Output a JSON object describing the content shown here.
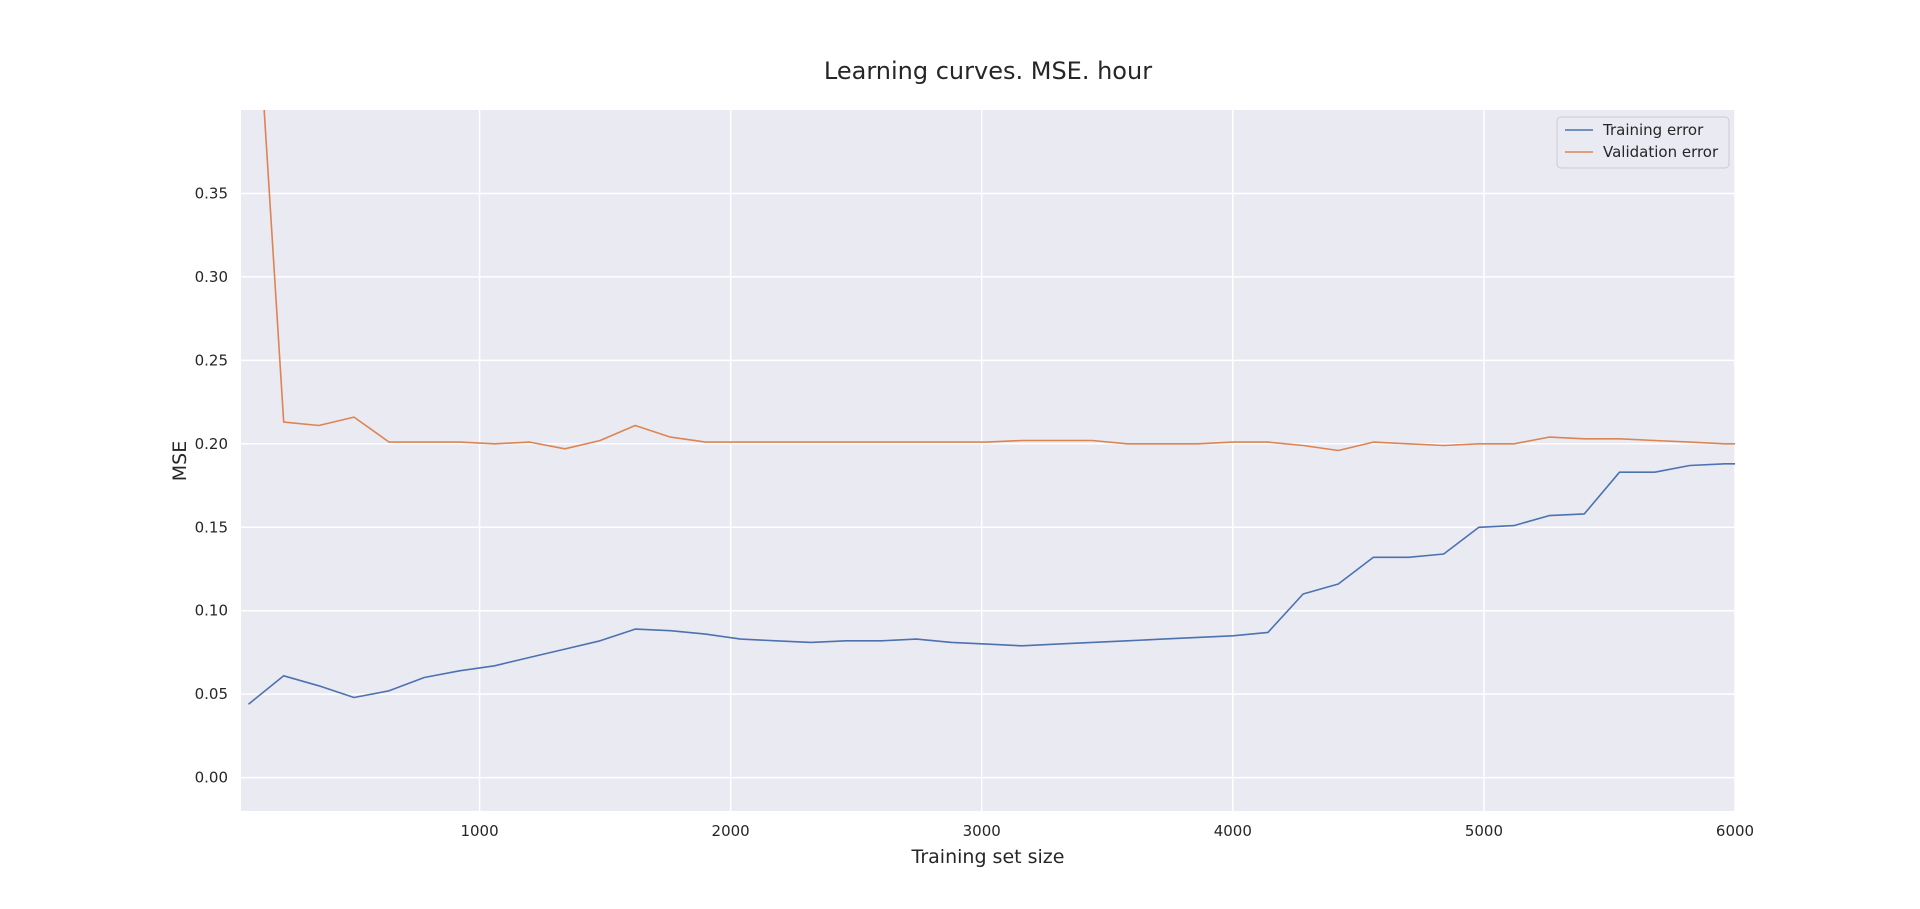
{
  "chart_data": {
    "type": "line",
    "title": "Learning curves. MSE. hour",
    "xlabel": "Training set size",
    "ylabel": "MSE",
    "xlim": [
      50,
      6000
    ],
    "ylim": [
      -0.02,
      0.4
    ],
    "xticks": [
      1000,
      2000,
      3000,
      4000,
      5000,
      6000
    ],
    "xtick_labels": [
      "1000",
      "2000",
      "3000",
      "4000",
      "5000",
      "6000"
    ],
    "yticks": [
      0.0,
      0.05,
      0.1,
      0.15,
      0.2,
      0.25,
      0.3,
      0.35
    ],
    "ytick_labels": [
      "0.00",
      "0.05",
      "0.10",
      "0.15",
      "0.20",
      "0.25",
      "0.30",
      "0.35"
    ],
    "grid": true,
    "legend_position": "top-right",
    "background_color": "#eaeaf2",
    "x": [
      80,
      220,
      360,
      500,
      640,
      780,
      920,
      1060,
      1200,
      1340,
      1480,
      1620,
      1760,
      1900,
      2040,
      2180,
      2320,
      2460,
      2600,
      2740,
      2880,
      3020,
      3160,
      3300,
      3440,
      3580,
      3720,
      3860,
      4000,
      4140,
      4280,
      4420,
      4560,
      4700,
      4840,
      4980,
      5120,
      5260,
      5400,
      5540,
      5680,
      5820,
      5960,
      6000
    ],
    "series": [
      {
        "name": "Training error",
        "color": "#4c72b0",
        "values": [
          0.044,
          0.061,
          0.055,
          0.048,
          0.052,
          0.06,
          0.064,
          0.067,
          0.072,
          0.077,
          0.082,
          0.089,
          0.088,
          0.086,
          0.083,
          0.082,
          0.081,
          0.082,
          0.082,
          0.083,
          0.081,
          0.08,
          0.079,
          0.08,
          0.081,
          0.082,
          0.083,
          0.084,
          0.085,
          0.087,
          0.11,
          0.116,
          0.132,
          0.132,
          0.134,
          0.15,
          0.151,
          0.157,
          0.158,
          0.183,
          0.183,
          0.187,
          0.188,
          0.188
        ]
      },
      {
        "name": "Validation error",
        "color": "#dd8452",
        "values": [
          0.55,
          0.213,
          0.211,
          0.216,
          0.201,
          0.201,
          0.201,
          0.2,
          0.201,
          0.197,
          0.202,
          0.211,
          0.204,
          0.201,
          0.201,
          0.201,
          0.201,
          0.201,
          0.201,
          0.201,
          0.201,
          0.201,
          0.202,
          0.202,
          0.202,
          0.2,
          0.2,
          0.2,
          0.201,
          0.201,
          0.199,
          0.196,
          0.201,
          0.2,
          0.199,
          0.2,
          0.2,
          0.204,
          0.203,
          0.203,
          0.202,
          0.201,
          0.2,
          0.2
        ]
      }
    ]
  }
}
